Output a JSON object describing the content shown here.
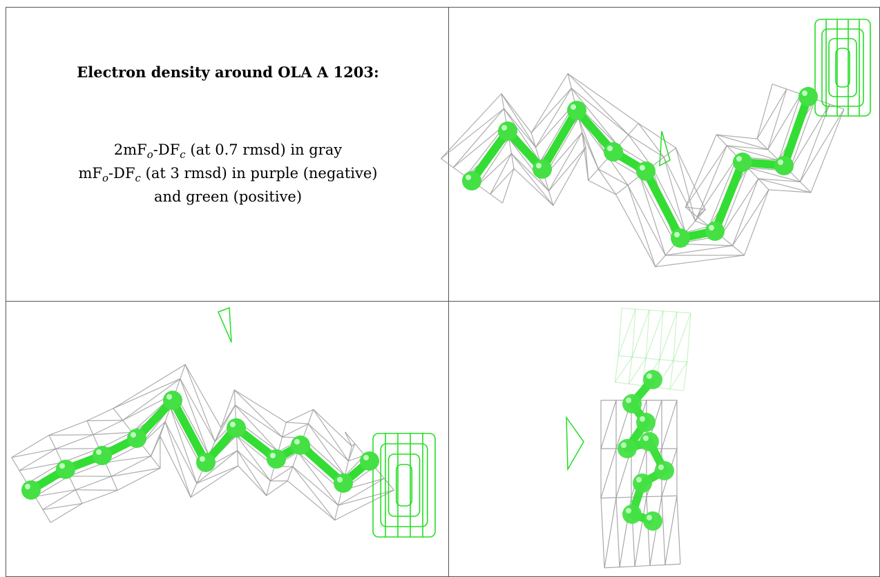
{
  "header": {
    "title": "Electron density around OLA A 1203:"
  },
  "legend": {
    "lines": [
      [
        "2mF",
        "o",
        "-DF",
        "c",
        " (at 0.7 rmsd) in gray"
      ],
      [
        "mF",
        "o",
        "-DF",
        "c",
        " (at 3 rmsd) in purple (negative)"
      ],
      [
        "and green (positive)"
      ]
    ]
  }
}
